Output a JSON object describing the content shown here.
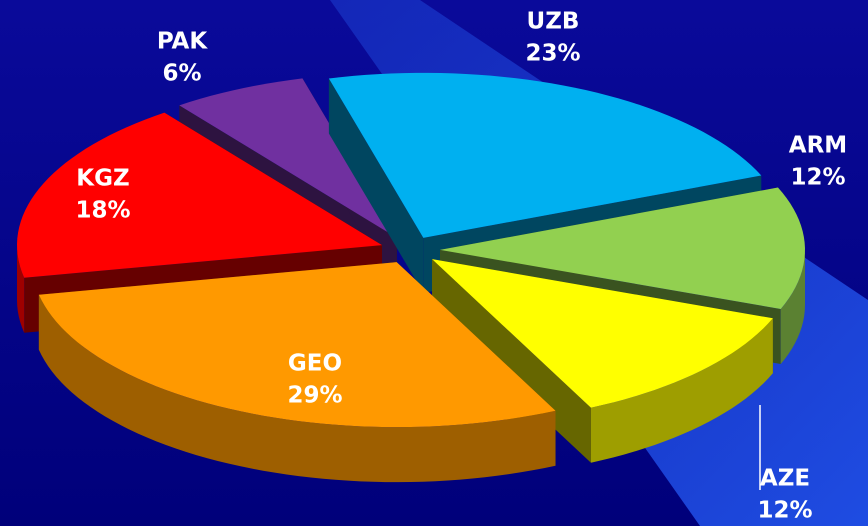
{
  "chart_data": {
    "type": "pie",
    "categories": [
      "UZB",
      "ARM",
      "AZE",
      "GEO",
      "KGZ",
      "PAK"
    ],
    "values": [
      23,
      12,
      12,
      29,
      18,
      6
    ],
    "value_labels": [
      "23%",
      "12%",
      "12%",
      "29%",
      "18%",
      "6%"
    ],
    "colors": [
      "#00b0f0",
      "#92d050",
      "#ffff00",
      "#ff9900",
      "#ff0000",
      "#7030a0"
    ]
  }
}
